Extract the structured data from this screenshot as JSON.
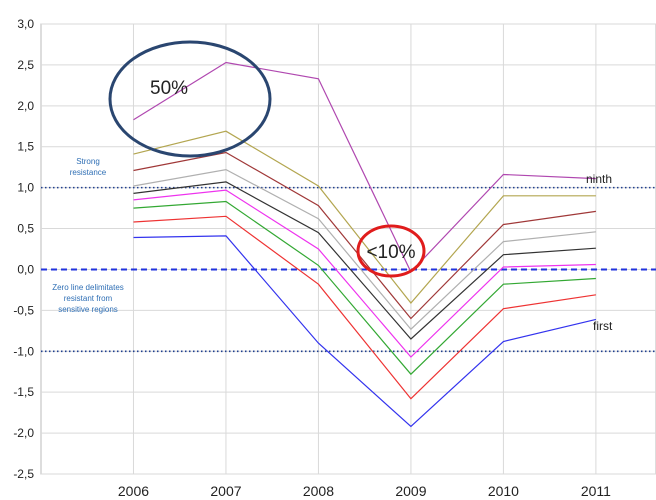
{
  "chart_data": {
    "type": "line",
    "title": "",
    "xlabel": "",
    "ylabel": "",
    "x": [
      2006,
      2007,
      2008,
      2009,
      2010,
      2011
    ],
    "x_tick_labels": [
      "2006",
      "2007",
      "2008",
      "2009",
      "2010",
      "2011"
    ],
    "xlim": [
      2005.0,
      2011.65
    ],
    "ylim": [
      -2.5,
      3.0
    ],
    "y_ticks": [
      3.0,
      2.5,
      2.0,
      1.5,
      1.0,
      0.5,
      0.0,
      -0.5,
      -1.0,
      -1.5,
      -2.0,
      -2.5
    ],
    "y_tick_labels": [
      "3,0",
      "2,5",
      "2,0",
      "1,5",
      "1,0",
      "0,5",
      "0,0",
      "-0,5",
      "-1,0",
      "-1,5",
      "-2,0",
      "-2,5"
    ],
    "grid": true,
    "grid_color": "#d9d9d9",
    "legend": "none",
    "series": [
      {
        "color": "#3333ee",
        "values": [
          0.39,
          0.41,
          -0.9,
          -1.92,
          -0.88,
          -0.61
        ]
      },
      {
        "color": "#ee3333",
        "values": [
          0.58,
          0.65,
          -0.18,
          -1.58,
          -0.48,
          -0.31
        ]
      },
      {
        "color": "#33a833",
        "values": [
          0.75,
          0.83,
          0.05,
          -1.28,
          -0.18,
          -0.11
        ]
      },
      {
        "color": "#ee33ee",
        "values": [
          0.85,
          0.97,
          0.25,
          -1.07,
          0.03,
          0.06
        ]
      },
      {
        "color": "#333333",
        "values": [
          0.93,
          1.07,
          0.45,
          -0.85,
          0.18,
          0.26
        ]
      },
      {
        "color": "#b0b0b0",
        "values": [
          1.02,
          1.22,
          0.62,
          -0.73,
          0.34,
          0.46
        ]
      },
      {
        "color": "#a03838",
        "values": [
          1.21,
          1.43,
          0.78,
          -0.6,
          0.55,
          0.71
        ]
      },
      {
        "color": "#b3a650",
        "values": [
          1.41,
          1.69,
          1.02,
          -0.41,
          0.9,
          0.9
        ]
      },
      {
        "color": "#b048b0",
        "values": [
          1.83,
          2.53,
          2.33,
          -0.03,
          1.16,
          1.11
        ]
      }
    ],
    "reference_lines": [
      {
        "y": 1.0,
        "style": "dotted",
        "color": "#1f3f8f"
      },
      {
        "y": 0.0,
        "style": "dashed",
        "color": "#2233dd"
      },
      {
        "y": -1.0,
        "style": "dotted",
        "color": "#1f3f8f"
      }
    ],
    "annotations": {
      "strong_resistance": [
        "Strong",
        "resistance"
      ],
      "zero_line": [
        "Zero line delimitates",
        "resistant from",
        "sensitive regions"
      ],
      "ninth": "ninth",
      "first": "first",
      "fifty": "50%",
      "ten": "<10%"
    },
    "highlight_colors": {
      "big_ellipse": "#2a4670",
      "small_ellipse": "#e01c1c"
    }
  }
}
